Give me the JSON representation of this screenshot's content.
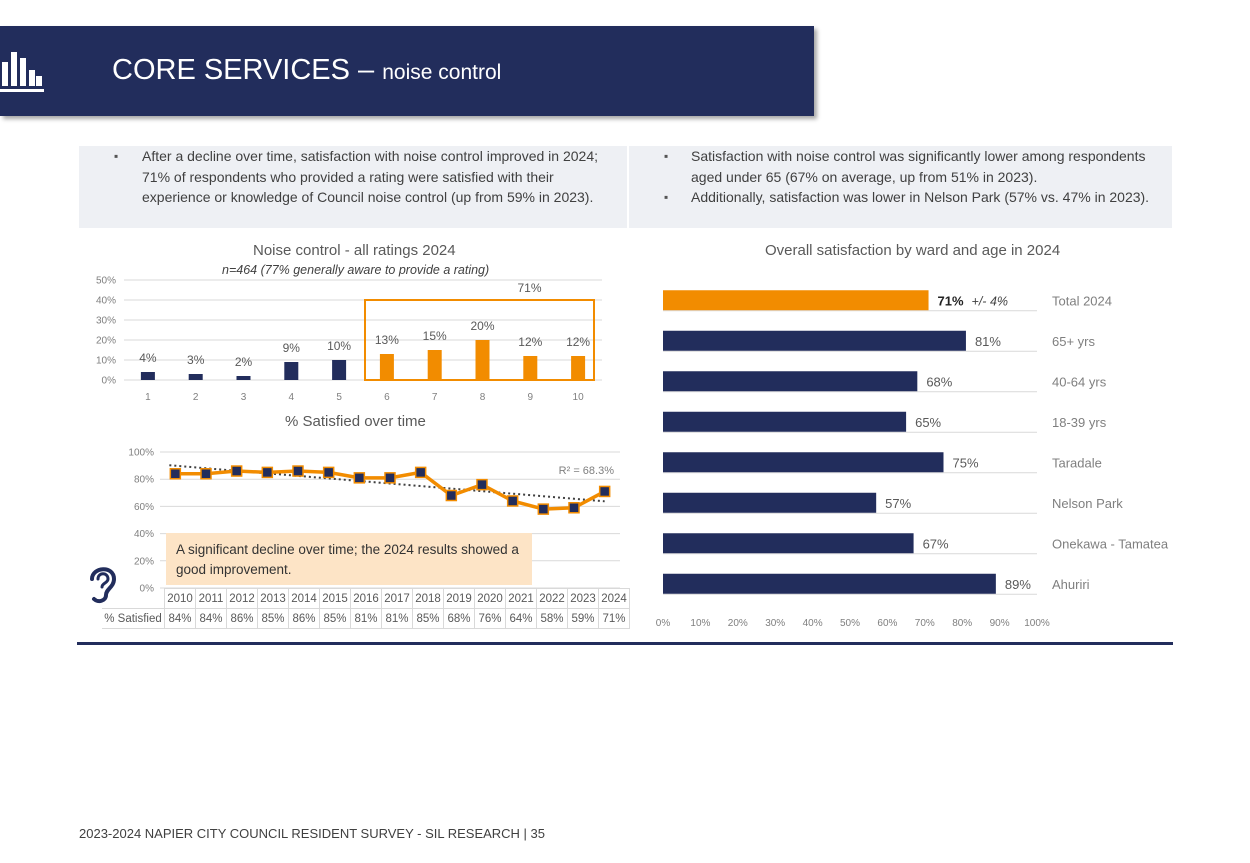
{
  "header": {
    "title": "CORE SERVICES",
    "dash": "–",
    "subtitle": "noise control"
  },
  "bullets_left": [
    "After a decline over time, satisfaction with noise control improved in 2024; 71% of respondents who provided a rating were satisfied with their experience or knowledge of Council noise control (up from 59% in 2023)."
  ],
  "bullets_right": [
    "Satisfaction with noise control was significantly lower among respondents aged under 65 (67% on average, up from 51% in 2023).",
    "Additionally, satisfaction was lower in Nelson Park (57% vs. 47% in 2023)."
  ],
  "callout": "A significant decline over time; the 2024 results showed a good improvement.",
  "footer": "2023-2024 NAPIER CITY COUNCIL RESIDENT SURVEY - SIL RESEARCH | 35",
  "colors": {
    "navy": "#222d5c",
    "orange": "#f28c00",
    "callout_bg": "#fde4c6",
    "panel_bg": "#eef0f4"
  },
  "icons": {
    "banner": "bar-chart-icon",
    "ear": "ear-icon"
  },
  "chart_data": [
    {
      "type": "bar",
      "title": "Noise control - all ratings 2024",
      "subtitle": "n=464 (77% generally aware to provide a rating)",
      "categories": [
        "1",
        "2",
        "3",
        "4",
        "5",
        "6",
        "7",
        "8",
        "9",
        "10"
      ],
      "values": [
        4,
        3,
        2,
        9,
        10,
        13,
        15,
        20,
        12,
        12
      ],
      "data_labels": [
        "4%",
        "3%",
        "2%",
        "9%",
        "10%",
        "13%",
        "15%",
        "20%",
        "12%",
        "12%"
      ],
      "highlight_categories": [
        "6",
        "7",
        "8",
        "9",
        "10"
      ],
      "highlight_label": "71%",
      "yticks": [
        "0%",
        "10%",
        "20%",
        "30%",
        "40%",
        "50%"
      ],
      "ylim": [
        0,
        50
      ],
      "grid": true
    },
    {
      "type": "line",
      "title": "% Satisfied over time",
      "x": [
        "2010",
        "2011",
        "2012",
        "2013",
        "2014",
        "2015",
        "2016",
        "2017",
        "2018",
        "2019",
        "2020",
        "2021",
        "2022",
        "2023",
        "2024"
      ],
      "series": [
        {
          "name": "% Satisfied",
          "values": [
            84,
            84,
            86,
            85,
            86,
            85,
            81,
            81,
            85,
            68,
            76,
            64,
            58,
            59,
            71
          ],
          "labels": [
            "84%",
            "84%",
            "86%",
            "85%",
            "86%",
            "85%",
            "81%",
            "81%",
            "85%",
            "68%",
            "76%",
            "64%",
            "58%",
            "59%",
            "71%"
          ]
        }
      ],
      "trendline": {
        "type": "linear",
        "r2_label": "R² = 68.3%"
      },
      "yticks": [
        "0%",
        "20%",
        "40%",
        "60%",
        "80%",
        "100%"
      ],
      "ylim": [
        0,
        100
      ],
      "grid": true
    },
    {
      "type": "bar",
      "orientation": "horizontal",
      "title": "Overall satisfaction by ward and age in 2024",
      "categories": [
        "Total 2024",
        "65+ yrs",
        "40-64 yrs",
        "18-39 yrs",
        "Taradale",
        "Nelson Park",
        "Onekawa - Tamatea",
        "Ahuriri"
      ],
      "values": [
        71,
        81,
        68,
        65,
        75,
        57,
        67,
        89
      ],
      "data_labels": [
        "71%",
        "81%",
        "68%",
        "65%",
        "75%",
        "57%",
        "67%",
        "89%"
      ],
      "total_margin_label": "+/- 4%",
      "highlight_categories": [
        "Total 2024"
      ],
      "xticks": [
        "0%",
        "10%",
        "20%",
        "30%",
        "40%",
        "50%",
        "60%",
        "70%",
        "80%",
        "90%",
        "100%"
      ],
      "xlim": [
        0,
        100
      ],
      "grid": true
    }
  ]
}
